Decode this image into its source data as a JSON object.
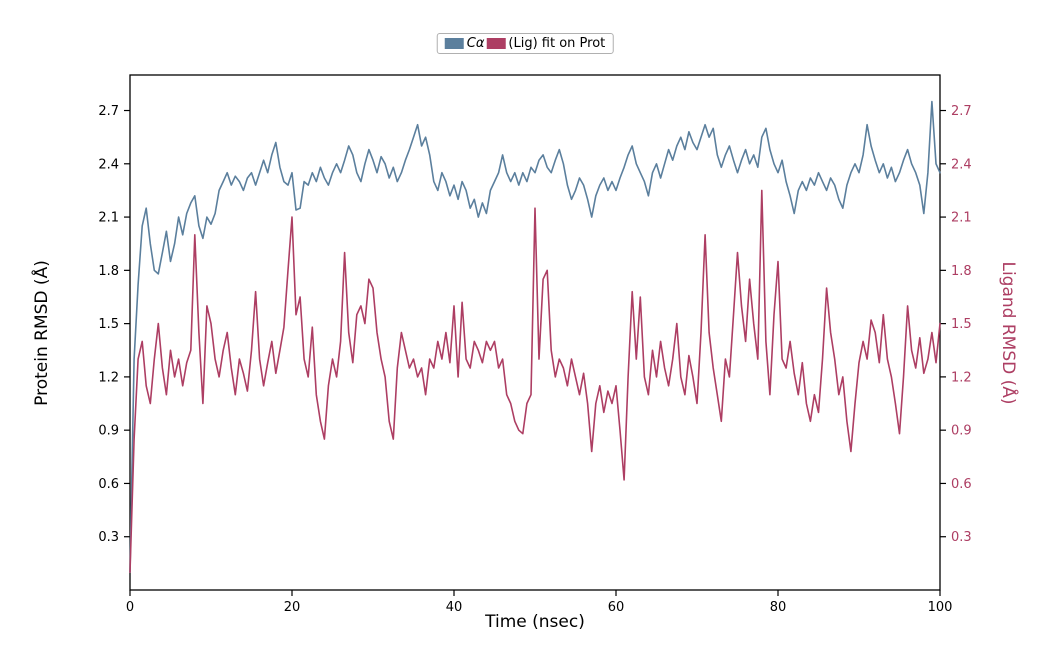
{
  "figure": {
    "background": "#ffffff"
  },
  "legend": {
    "items": [
      {
        "name": "protein",
        "label": "Cα",
        "color": "#5b7f9d"
      },
      {
        "name": "ligand",
        "label": "(Lig) fit on Prot",
        "color": "#ad3e63"
      }
    ]
  },
  "axes": {
    "xlabel": "Time (nsec)",
    "ylabel_left": "Protein RMSD (Å)",
    "ylabel_right": "Ligand RMSD (Å)",
    "left_tick_color": "#000000",
    "right_tick_color": "#ad3e63",
    "spine_color": "#000000"
  },
  "chart_data": {
    "type": "line",
    "title": "",
    "xlabel": "Time (nsec)",
    "ylabel_left": "Protein RMSD (Å)",
    "ylabel_right": "Ligand RMSD (Å)",
    "xlim": [
      0,
      100
    ],
    "ylim_left": [
      0,
      2.9
    ],
    "ylim_right": [
      0,
      2.9
    ],
    "xticks": [
      0,
      20,
      40,
      60,
      80,
      100
    ],
    "yticks": [
      0.3,
      0.6,
      0.9,
      1.2,
      1.5,
      1.8,
      2.1,
      2.4,
      2.7
    ],
    "grid": false,
    "legend_position": "top-center",
    "x": [
      0,
      0.5,
      1,
      1.5,
      2,
      2.5,
      3,
      3.5,
      4,
      4.5,
      5,
      5.5,
      6,
      6.5,
      7,
      7.5,
      8,
      8.5,
      9,
      9.5,
      10,
      10.5,
      11,
      11.5,
      12,
      12.5,
      13,
      13.5,
      14,
      14.5,
      15,
      15.5,
      16,
      16.5,
      17,
      17.5,
      18,
      18.5,
      19,
      19.5,
      20,
      20.5,
      21,
      21.5,
      22,
      22.5,
      23,
      23.5,
      24,
      24.5,
      25,
      25.5,
      26,
      26.5,
      27,
      27.5,
      28,
      28.5,
      29,
      29.5,
      30,
      30.5,
      31,
      31.5,
      32,
      32.5,
      33,
      33.5,
      34,
      34.5,
      35,
      35.5,
      36,
      36.5,
      37,
      37.5,
      38,
      38.5,
      39,
      39.5,
      40,
      40.5,
      41,
      41.5,
      42,
      42.5,
      43,
      43.5,
      44,
      44.5,
      45,
      45.5,
      46,
      46.5,
      47,
      47.5,
      48,
      48.5,
      49,
      49.5,
      50,
      50.5,
      51,
      51.5,
      52,
      52.5,
      53,
      53.5,
      54,
      54.5,
      55,
      55.5,
      56,
      56.5,
      57,
      57.5,
      58,
      58.5,
      59,
      59.5,
      60,
      60.5,
      61,
      61.5,
      62,
      62.5,
      63,
      63.5,
      64,
      64.5,
      65,
      65.5,
      66,
      66.5,
      67,
      67.5,
      68,
      68.5,
      69,
      69.5,
      70,
      70.5,
      71,
      71.5,
      72,
      72.5,
      73,
      73.5,
      74,
      74.5,
      75,
      75.5,
      76,
      76.5,
      77,
      77.5,
      78,
      78.5,
      79,
      79.5,
      80,
      80.5,
      81,
      81.5,
      82,
      82.5,
      83,
      83.5,
      84,
      84.5,
      85,
      85.5,
      86,
      86.5,
      87,
      87.5,
      88,
      88.5,
      89,
      89.5,
      90,
      90.5,
      91,
      91.5,
      92,
      92.5,
      93,
      93.5,
      94,
      94.5,
      95,
      95.5,
      96,
      96.5,
      97,
      97.5,
      98,
      98.5,
      99,
      99.5,
      100
    ],
    "series": [
      {
        "name": "Cα",
        "axis": "left",
        "color": "#5b7f9d",
        "values": [
          0.1,
          1.3,
          1.72,
          2.05,
          2.15,
          1.95,
          1.8,
          1.78,
          1.9,
          2.02,
          1.85,
          1.95,
          2.1,
          2.0,
          2.12,
          2.18,
          2.22,
          2.05,
          1.98,
          2.1,
          2.06,
          2.12,
          2.25,
          2.3,
          2.35,
          2.28,
          2.33,
          2.3,
          2.25,
          2.32,
          2.35,
          2.28,
          2.35,
          2.42,
          2.35,
          2.45,
          2.52,
          2.38,
          2.3,
          2.28,
          2.35,
          2.14,
          2.15,
          2.3,
          2.28,
          2.35,
          2.3,
          2.38,
          2.32,
          2.28,
          2.35,
          2.4,
          2.35,
          2.42,
          2.5,
          2.45,
          2.35,
          2.3,
          2.4,
          2.48,
          2.42,
          2.35,
          2.44,
          2.4,
          2.32,
          2.38,
          2.3,
          2.35,
          2.42,
          2.48,
          2.55,
          2.62,
          2.5,
          2.55,
          2.45,
          2.3,
          2.25,
          2.35,
          2.3,
          2.22,
          2.28,
          2.2,
          2.3,
          2.25,
          2.15,
          2.2,
          2.1,
          2.18,
          2.12,
          2.25,
          2.3,
          2.35,
          2.45,
          2.35,
          2.3,
          2.35,
          2.28,
          2.35,
          2.3,
          2.38,
          2.35,
          2.42,
          2.45,
          2.38,
          2.35,
          2.42,
          2.48,
          2.4,
          2.28,
          2.2,
          2.25,
          2.32,
          2.28,
          2.2,
          2.1,
          2.22,
          2.28,
          2.32,
          2.25,
          2.3,
          2.25,
          2.32,
          2.38,
          2.45,
          2.5,
          2.4,
          2.35,
          2.3,
          2.22,
          2.35,
          2.4,
          2.32,
          2.4,
          2.48,
          2.42,
          2.5,
          2.55,
          2.48,
          2.58,
          2.52,
          2.48,
          2.55,
          2.62,
          2.55,
          2.6,
          2.45,
          2.38,
          2.45,
          2.5,
          2.42,
          2.35,
          2.42,
          2.48,
          2.4,
          2.45,
          2.38,
          2.55,
          2.6,
          2.48,
          2.4,
          2.35,
          2.42,
          2.3,
          2.22,
          2.12,
          2.25,
          2.3,
          2.25,
          2.32,
          2.28,
          2.35,
          2.3,
          2.25,
          2.32,
          2.28,
          2.2,
          2.15,
          2.28,
          2.35,
          2.4,
          2.35,
          2.45,
          2.62,
          2.5,
          2.42,
          2.35,
          2.4,
          2.32,
          2.38,
          2.3,
          2.35,
          2.42,
          2.48,
          2.4,
          2.35,
          2.28,
          2.12,
          2.35,
          2.75,
          2.4,
          2.35
        ]
      },
      {
        "name": "(Lig) fit on Prot",
        "axis": "right",
        "color": "#ad3e63",
        "values": [
          0.1,
          0.85,
          1.3,
          1.4,
          1.15,
          1.05,
          1.3,
          1.5,
          1.25,
          1.1,
          1.35,
          1.2,
          1.3,
          1.15,
          1.28,
          1.35,
          2.0,
          1.45,
          1.05,
          1.6,
          1.5,
          1.3,
          1.2,
          1.35,
          1.45,
          1.25,
          1.1,
          1.3,
          1.22,
          1.12,
          1.35,
          1.68,
          1.3,
          1.15,
          1.28,
          1.4,
          1.22,
          1.35,
          1.48,
          1.8,
          2.1,
          1.55,
          1.65,
          1.3,
          1.2,
          1.48,
          1.1,
          0.95,
          0.85,
          1.15,
          1.3,
          1.2,
          1.4,
          1.9,
          1.45,
          1.28,
          1.55,
          1.6,
          1.5,
          1.75,
          1.7,
          1.45,
          1.3,
          1.2,
          0.95,
          0.85,
          1.25,
          1.45,
          1.35,
          1.25,
          1.3,
          1.2,
          1.25,
          1.1,
          1.3,
          1.25,
          1.4,
          1.3,
          1.45,
          1.28,
          1.6,
          1.2,
          1.62,
          1.3,
          1.25,
          1.4,
          1.35,
          1.28,
          1.4,
          1.35,
          1.4,
          1.25,
          1.3,
          1.1,
          1.05,
          0.95,
          0.9,
          0.88,
          1.05,
          1.1,
          2.15,
          1.3,
          1.75,
          1.8,
          1.35,
          1.2,
          1.3,
          1.25,
          1.15,
          1.3,
          1.2,
          1.1,
          1.22,
          1.05,
          0.78,
          1.05,
          1.15,
          1.0,
          1.12,
          1.05,
          1.15,
          0.9,
          0.62,
          1.2,
          1.68,
          1.3,
          1.65,
          1.2,
          1.1,
          1.35,
          1.2,
          1.4,
          1.25,
          1.15,
          1.3,
          1.5,
          1.2,
          1.1,
          1.32,
          1.2,
          1.05,
          1.45,
          2.0,
          1.45,
          1.25,
          1.1,
          0.95,
          1.3,
          1.2,
          1.55,
          1.9,
          1.6,
          1.4,
          1.75,
          1.5,
          1.3,
          2.25,
          1.4,
          1.1,
          1.55,
          1.85,
          1.3,
          1.25,
          1.4,
          1.22,
          1.1,
          1.28,
          1.05,
          0.95,
          1.1,
          1.0,
          1.3,
          1.7,
          1.45,
          1.3,
          1.1,
          1.2,
          0.95,
          0.78,
          1.05,
          1.28,
          1.4,
          1.3,
          1.52,
          1.45,
          1.28,
          1.55,
          1.3,
          1.2,
          1.05,
          0.88,
          1.2,
          1.6,
          1.35,
          1.25,
          1.42,
          1.22,
          1.3,
          1.45,
          1.28,
          1.5
        ]
      }
    ]
  }
}
